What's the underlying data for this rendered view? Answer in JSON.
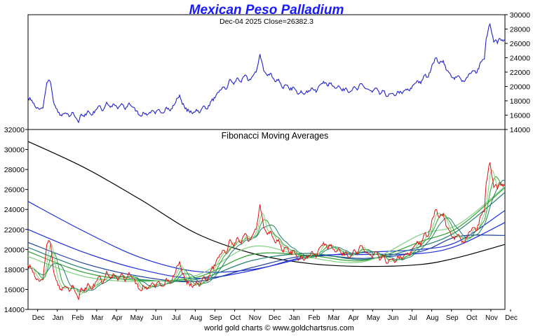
{
  "page": {
    "title": "Mexican Peso Palladium",
    "footer": "world gold charts © www.goldchartsrus.com"
  },
  "colors": {
    "title": "#1a1aff",
    "price_line": "#2222cc",
    "frame": "#000000",
    "ma_black": "#000000",
    "ma_blue": "#1f2fdd",
    "ma_navy": "#1f3f9f",
    "ma_teal": "#1f7f6f",
    "ma_green": "#2ea12e",
    "ma_lightgreen": "#7fd07f",
    "ma_red": "#dd1111"
  },
  "chart_data": [
    {
      "type": "line",
      "name": "price-panel",
      "title": "Mexican Peso Palladium",
      "subtitle": "Dec-04  2025   Close=26382.3",
      "ylim": [
        14000,
        30000
      ],
      "yticks": [
        14000,
        16000,
        18000,
        20000,
        22000,
        24000,
        26000,
        28000,
        30000
      ],
      "axis_side": "right",
      "x_start": 0,
      "x_end": 255,
      "anchors": [
        [
          0,
          18400
        ],
        [
          2,
          18100
        ],
        [
          4,
          17100
        ],
        [
          6,
          16800
        ],
        [
          8,
          17000
        ],
        [
          9,
          18800
        ],
        [
          10,
          20500
        ],
        [
          11,
          20900
        ],
        [
          12,
          20600
        ],
        [
          13,
          18900
        ],
        [
          14,
          17500
        ],
        [
          16,
          16400
        ],
        [
          18,
          15900
        ],
        [
          20,
          16300
        ],
        [
          22,
          15800
        ],
        [
          24,
          16400
        ],
        [
          26,
          15500
        ],
        [
          27,
          15000
        ],
        [
          28,
          16000
        ],
        [
          30,
          15800
        ],
        [
          32,
          16600
        ],
        [
          34,
          16000
        ],
        [
          36,
          16700
        ],
        [
          38,
          17300
        ],
        [
          40,
          16600
        ],
        [
          42,
          17800
        ],
        [
          44,
          17100
        ],
        [
          46,
          17500
        ],
        [
          48,
          16900
        ],
        [
          50,
          17600
        ],
        [
          52,
          16800
        ],
        [
          54,
          17700
        ],
        [
          56,
          17100
        ],
        [
          58,
          16600
        ],
        [
          60,
          15900
        ],
        [
          62,
          16300
        ],
        [
          64,
          16100
        ],
        [
          66,
          16600
        ],
        [
          68,
          16200
        ],
        [
          70,
          16800
        ],
        [
          72,
          16300
        ],
        [
          74,
          17100
        ],
        [
          76,
          16600
        ],
        [
          78,
          17400
        ],
        [
          80,
          18400
        ],
        [
          81,
          18800
        ],
        [
          82,
          18000
        ],
        [
          84,
          16900
        ],
        [
          86,
          16600
        ],
        [
          88,
          16200
        ],
        [
          90,
          16800
        ],
        [
          92,
          16400
        ],
        [
          94,
          17300
        ],
        [
          96,
          16900
        ],
        [
          98,
          18000
        ],
        [
          100,
          18400
        ],
        [
          102,
          19200
        ],
        [
          104,
          19900
        ],
        [
          106,
          19600
        ],
        [
          108,
          21000
        ],
        [
          110,
          20300
        ],
        [
          112,
          21200
        ],
        [
          114,
          20600
        ],
        [
          116,
          21600
        ],
        [
          118,
          20800
        ],
        [
          120,
          21400
        ],
        [
          122,
          22000
        ],
        [
          124,
          24500
        ],
        [
          125,
          23500
        ],
        [
          126,
          22200
        ],
        [
          128,
          21500
        ],
        [
          130,
          21800
        ],
        [
          132,
          20700
        ],
        [
          134,
          21000
        ],
        [
          136,
          19800
        ],
        [
          138,
          20200
        ],
        [
          140,
          19500
        ],
        [
          142,
          19900
        ],
        [
          144,
          19000
        ],
        [
          146,
          19400
        ],
        [
          148,
          19000
        ],
        [
          150,
          19400
        ],
        [
          152,
          19800
        ],
        [
          154,
          19200
        ],
        [
          156,
          20200
        ],
        [
          158,
          20700
        ],
        [
          160,
          20100
        ],
        [
          162,
          20500
        ],
        [
          164,
          19800
        ],
        [
          166,
          20100
        ],
        [
          168,
          19400
        ],
        [
          170,
          19800
        ],
        [
          172,
          19200
        ],
        [
          174,
          19900
        ],
        [
          176,
          19500
        ],
        [
          178,
          20400
        ],
        [
          180,
          19800
        ],
        [
          182,
          19600
        ],
        [
          184,
          19200
        ],
        [
          186,
          19800
        ],
        [
          188,
          18900
        ],
        [
          190,
          19400
        ],
        [
          192,
          18600
        ],
        [
          194,
          19000
        ],
        [
          196,
          18700
        ],
        [
          198,
          19300
        ],
        [
          200,
          19000
        ],
        [
          202,
          19600
        ],
        [
          204,
          19400
        ],
        [
          206,
          20200
        ],
        [
          208,
          20800
        ],
        [
          210,
          20400
        ],
        [
          212,
          21600
        ],
        [
          214,
          21300
        ],
        [
          216,
          23000
        ],
        [
          218,
          24000
        ],
        [
          220,
          23200
        ],
        [
          222,
          23600
        ],
        [
          224,
          22200
        ],
        [
          226,
          21600
        ],
        [
          228,
          21000
        ],
        [
          230,
          21500
        ],
        [
          232,
          20700
        ],
        [
          234,
          21000
        ],
        [
          236,
          21800
        ],
        [
          238,
          22200
        ],
        [
          240,
          21900
        ],
        [
          242,
          23400
        ],
        [
          244,
          23800
        ],
        [
          245,
          26700
        ],
        [
          246,
          27800
        ],
        [
          247,
          28700
        ],
        [
          248,
          27400
        ],
        [
          249,
          26200
        ],
        [
          250,
          26500
        ],
        [
          251,
          26000
        ],
        [
          252,
          26700
        ],
        [
          253,
          26400
        ],
        [
          254,
          26300
        ],
        [
          255,
          26382
        ]
      ]
    },
    {
      "type": "line",
      "name": "fibonacci-ma-panel",
      "title": "Fibonacci Moving Averages",
      "ylim": [
        14000,
        32000
      ],
      "yticks": [
        14000,
        16000,
        18000,
        20000,
        22000,
        24000,
        26000,
        28000,
        30000,
        32000
      ],
      "axis_side": "left",
      "x_start": 0,
      "x_end": 255,
      "x_categories": [
        "Dec",
        "Jan",
        "Feb",
        "Mar",
        "Apr",
        "May",
        "Jun",
        "Jul",
        "Aug",
        "Sep",
        "Oct",
        "Nov",
        "Dec",
        "Jan",
        "Feb",
        "Mar",
        "Apr",
        "May",
        "Jun",
        "Jul",
        "Aug",
        "Sep",
        "Oct",
        "Nov",
        "Dec"
      ],
      "x_tick_positions": [
        4,
        24,
        44,
        64,
        84,
        104,
        124,
        144,
        164,
        184,
        204,
        224,
        244,
        264,
        284,
        304,
        324,
        344,
        364,
        384,
        404,
        424,
        444,
        464,
        484
      ],
      "x_domain_ticks": [
        0,
        484
      ],
      "series": [
        {
          "name": "MA long black",
          "color_key": "ma_black",
          "values": [
            [
              0,
              30800
            ],
            [
              30,
              28200
            ],
            [
              60,
              25000
            ],
            [
              90,
              21600
            ],
            [
              120,
              19600
            ],
            [
              150,
              18600
            ],
            [
              180,
              18300
            ],
            [
              210,
              18500
            ],
            [
              230,
              19200
            ],
            [
              255,
              20500
            ]
          ]
        },
        {
          "name": "MA blue upper",
          "color_key": "ma_blue",
          "values": [
            [
              0,
              24800
            ],
            [
              30,
              21800
            ],
            [
              60,
              19200
            ],
            [
              90,
              17800
            ],
            [
              120,
              18000
            ],
            [
              150,
              19200
            ],
            [
              180,
              19700
            ],
            [
              210,
              20000
            ],
            [
              230,
              20800
            ],
            [
              255,
              23900
            ]
          ]
        },
        {
          "name": "MA blue lower",
          "color_key": "ma_blue",
          "values": [
            [
              0,
              22000
            ],
            [
              30,
              19700
            ],
            [
              60,
              18000
            ],
            [
              90,
              17100
            ],
            [
              120,
              17900
            ],
            [
              150,
              19300
            ],
            [
              180,
              19500
            ],
            [
              210,
              19600
            ],
            [
              230,
              20400
            ],
            [
              255,
              22700
            ]
          ]
        },
        {
          "name": "MA navy",
          "color_key": "ma_navy",
          "values": [
            [
              0,
              20700
            ],
            [
              30,
              18600
            ],
            [
              60,
              17300
            ],
            [
              90,
              16800
            ],
            [
              120,
              18200
            ],
            [
              150,
              19400
            ],
            [
              180,
              19100
            ],
            [
              210,
              19800
            ],
            [
              230,
              21300
            ],
            [
              255,
              21400
            ]
          ]
        },
        {
          "name": "MA teal",
          "color_key": "ma_teal",
          "values": [
            [
              0,
              20200
            ],
            [
              30,
              18100
            ],
            [
              60,
              17000
            ],
            [
              90,
              17000
            ],
            [
              120,
              18900
            ],
            [
              150,
              19600
            ],
            [
              180,
              19000
            ],
            [
              210,
              20300
            ],
            [
              230,
              21900
            ],
            [
              255,
              25700
            ]
          ]
        },
        {
          "name": "MA green",
          "color_key": "ma_green",
          "values": [
            [
              0,
              19800
            ],
            [
              30,
              17700
            ],
            [
              60,
              16900
            ],
            [
              90,
              17200
            ],
            [
              120,
              19500
            ],
            [
              150,
              19400
            ],
            [
              180,
              18900
            ],
            [
              210,
              20800
            ],
            [
              230,
              22200
            ],
            [
              255,
              26200
            ]
          ]
        },
        {
          "name": "MA light green",
          "color_key": "ma_lightgreen",
          "values": [
            [
              0,
              19300
            ],
            [
              30,
              17300
            ],
            [
              60,
              16800
            ],
            [
              90,
              17400
            ],
            [
              120,
              20300
            ],
            [
              150,
              19200
            ],
            [
              180,
              18800
            ],
            [
              210,
              21500
            ],
            [
              230,
              22500
            ],
            [
              255,
              26300
            ]
          ]
        },
        {
          "name": "Price red",
          "color_key": "ma_red",
          "values": "same_as_price_panel"
        }
      ]
    }
  ]
}
